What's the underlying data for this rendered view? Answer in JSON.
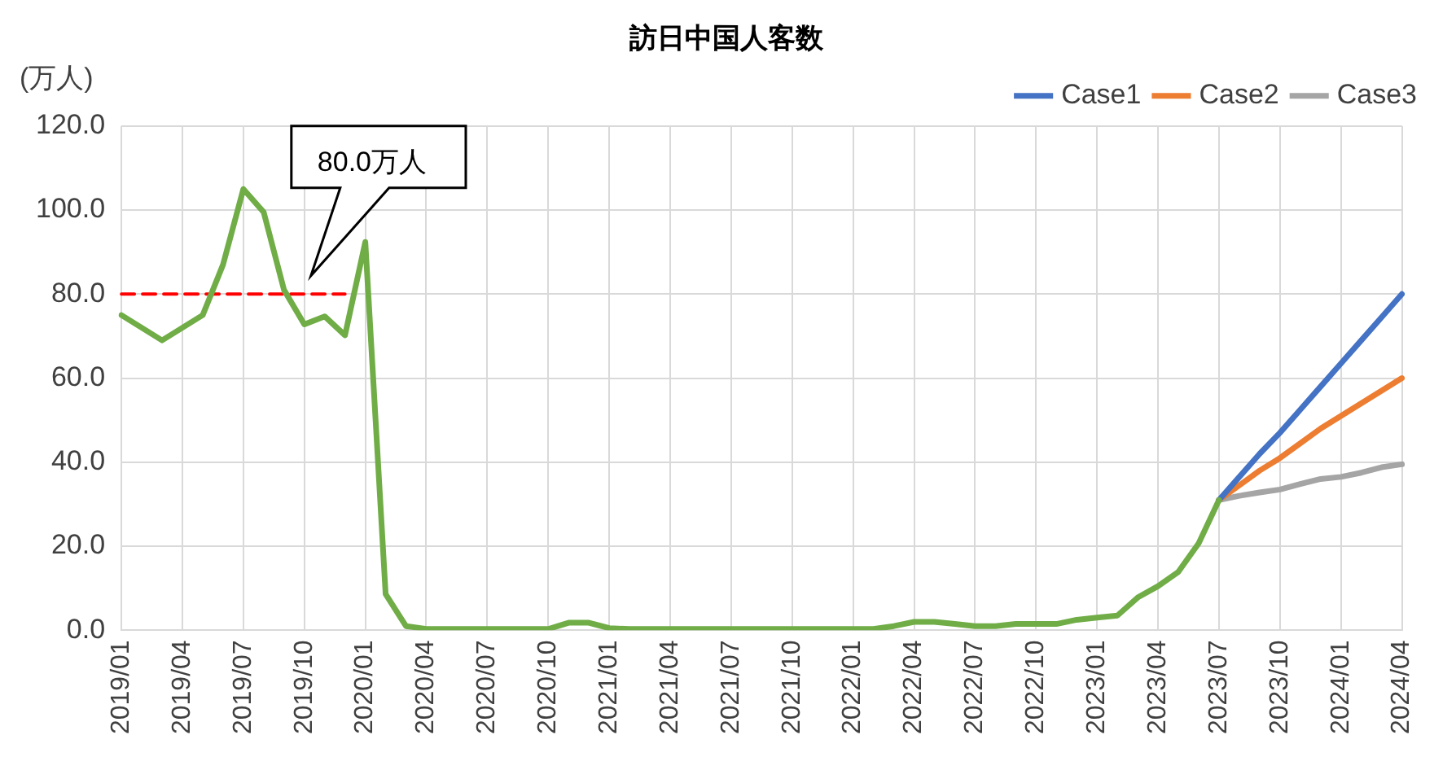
{
  "chart_data": {
    "type": "line",
    "title": "訪日中国人客数",
    "ylabel": "(万人)",
    "categories": [
      "2019/01",
      null,
      null,
      "2019/04",
      null,
      null,
      "2019/07",
      null,
      null,
      "2019/10",
      null,
      null,
      "2020/01",
      null,
      null,
      "2020/04",
      null,
      null,
      "2020/07",
      null,
      null,
      "2020/10",
      null,
      null,
      "2021/01",
      null,
      null,
      "2021/04",
      null,
      null,
      "2021/07",
      null,
      null,
      "2021/10",
      null,
      null,
      "2022/01",
      null,
      null,
      "2022/04",
      null,
      null,
      "2022/07",
      null,
      null,
      "2022/10",
      null,
      null,
      "2023/01",
      null,
      null,
      "2023/04",
      null,
      null,
      "2023/07",
      null,
      null,
      "2023/10",
      null,
      null,
      "2024/01",
      null,
      null,
      "2024/04"
    ],
    "series": [
      {
        "color": "#70ad47",
        "values": [
          75,
          72,
          69,
          72,
          75,
          87,
          105,
          99.5,
          81,
          72.8,
          74.7,
          70.2,
          92.4,
          8.6,
          1,
          0.3,
          0.3,
          0.3,
          0.3,
          0.3,
          0.3,
          0.3,
          1.8,
          1.8,
          0.5,
          0.3,
          0.3,
          0.3,
          0.3,
          0.3,
          0.3,
          0.3,
          0.3,
          0.3,
          0.3,
          0.3,
          0.3,
          0.3,
          1,
          2,
          2,
          1.5,
          1,
          1,
          1.5,
          1.5,
          1.5,
          2.5,
          3,
          3.5,
          7.8,
          10.5,
          13.9,
          20.7,
          31,
          null,
          null,
          null,
          null,
          null,
          null,
          null,
          null,
          null
        ]
      },
      {
        "name": "Case1",
        "color": "#4472c4",
        "values": [
          null,
          null,
          null,
          null,
          null,
          null,
          null,
          null,
          null,
          null,
          null,
          null,
          null,
          null,
          null,
          null,
          null,
          null,
          null,
          null,
          null,
          null,
          null,
          null,
          null,
          null,
          null,
          null,
          null,
          null,
          null,
          null,
          null,
          null,
          null,
          null,
          null,
          null,
          null,
          null,
          null,
          null,
          null,
          null,
          null,
          null,
          null,
          null,
          null,
          null,
          null,
          null,
          null,
          null,
          31,
          36.5,
          42,
          47,
          52.5,
          58,
          63.5,
          69,
          74.5,
          80
        ]
      },
      {
        "name": "Case2",
        "color": "#ed7d31",
        "values": [
          null,
          null,
          null,
          null,
          null,
          null,
          null,
          null,
          null,
          null,
          null,
          null,
          null,
          null,
          null,
          null,
          null,
          null,
          null,
          null,
          null,
          null,
          null,
          null,
          null,
          null,
          null,
          null,
          null,
          null,
          null,
          null,
          null,
          null,
          null,
          null,
          null,
          null,
          null,
          null,
          null,
          null,
          null,
          null,
          null,
          null,
          null,
          null,
          null,
          null,
          null,
          null,
          null,
          null,
          31,
          34.5,
          38,
          41,
          44.5,
          48,
          51,
          54,
          57,
          60
        ]
      },
      {
        "name": "Case3",
        "color": "#a5a5a5",
        "values": [
          null,
          null,
          null,
          null,
          null,
          null,
          null,
          null,
          null,
          null,
          null,
          null,
          null,
          null,
          null,
          null,
          null,
          null,
          null,
          null,
          null,
          null,
          null,
          null,
          null,
          null,
          null,
          null,
          null,
          null,
          null,
          null,
          null,
          null,
          null,
          null,
          null,
          null,
          null,
          null,
          null,
          null,
          null,
          null,
          null,
          null,
          null,
          null,
          null,
          null,
          null,
          null,
          null,
          null,
          31,
          32,
          32.8,
          33.5,
          34.8,
          36,
          36.5,
          37.5,
          38.8,
          39.5
        ]
      },
      {
        "color": "#ff0000",
        "line_style": "dashed",
        "values": [
          80,
          80,
          80,
          80,
          80,
          80,
          80,
          80,
          80,
          80,
          80,
          80,
          null,
          null,
          null,
          null,
          null,
          null,
          null,
          null,
          null,
          null,
          null,
          null,
          null,
          null,
          null,
          null,
          null,
          null,
          null,
          null,
          null,
          null,
          null,
          null,
          null,
          null,
          null,
          null,
          null,
          null,
          null,
          null,
          null,
          null,
          null,
          null,
          null,
          null,
          null,
          null,
          null,
          null,
          null,
          null,
          null,
          null,
          null,
          null,
          null,
          null,
          null,
          null
        ]
      }
    ],
    "ylim": [
      0,
      120
    ],
    "yticks": [
      {
        "value": 0,
        "label": "0.0"
      },
      {
        "value": 20,
        "label": "20.0"
      },
      {
        "value": 40,
        "label": "40.0"
      },
      {
        "value": 60,
        "label": "60.0"
      },
      {
        "value": 80,
        "label": "80.0"
      },
      {
        "value": 100,
        "label": "100.0"
      },
      {
        "value": 120,
        "label": "120.0"
      }
    ],
    "grid": true,
    "legend": "top right",
    "annotations": [
      "80.0万人"
    ]
  }
}
